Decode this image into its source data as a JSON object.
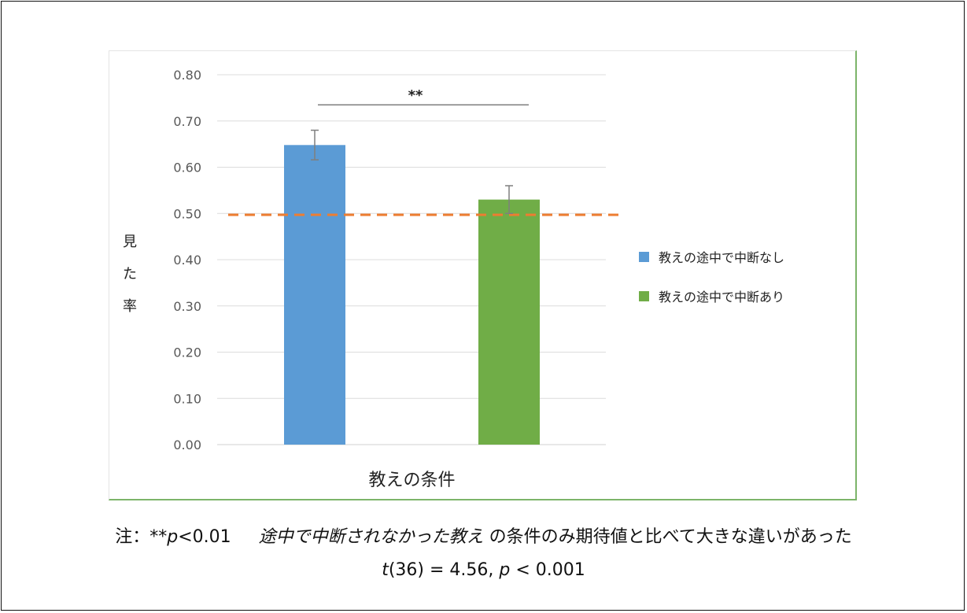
{
  "chart_data": {
    "type": "bar",
    "categories": [
      "教えの途中で中断なし",
      "教えの途中で中断あり"
    ],
    "values": [
      0.648,
      0.53
    ],
    "errors": [
      0.032,
      0.03
    ],
    "colors": [
      "#5b9bd5",
      "#70ad47"
    ],
    "xlabel": "教えの条件",
    "ylabel": [
      "見",
      "た",
      "率"
    ],
    "ylim": [
      0,
      0.8
    ],
    "yticks": [
      "0.00",
      "0.10",
      "0.20",
      "0.30",
      "0.40",
      "0.50",
      "0.60",
      "0.70",
      "0.80"
    ],
    "reference_line": {
      "value": 0.497,
      "color": "#ed7d31",
      "style": "dashed"
    },
    "significance": {
      "label": "**",
      "between": [
        0,
        1
      ],
      "value": 0.735
    },
    "grid": true,
    "legend_position": "right"
  },
  "note": {
    "prefix": "注：**",
    "p_symbol": "p",
    "p_value": "<0.01",
    "italic_condition": "途中で中断されなかった教え",
    "rest": "の条件のみ期待値と比べて大きな違いがあった",
    "t_symbol": "t",
    "stat": "(36) = 4.56, ",
    "p_symbol2": "p",
    "p_value2": " < 0.001"
  }
}
